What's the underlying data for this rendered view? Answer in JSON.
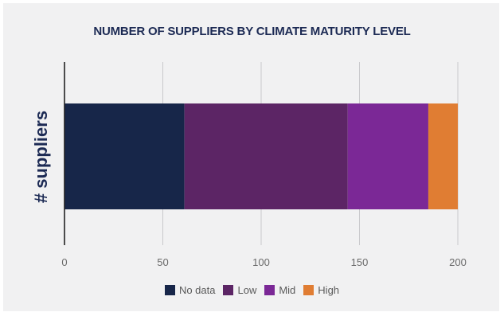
{
  "chart_data": {
    "type": "bar",
    "orientation": "horizontal",
    "stacked": true,
    "title": "NUMBER OF SUPPLIERS BY CLIMATE MATURITY LEVEL",
    "ylabel": "# suppliers",
    "xlabel": "",
    "xlim": [
      0,
      200
    ],
    "xticks": [
      "0",
      "50",
      "100",
      "150",
      "200"
    ],
    "grid": true,
    "legend_position": "bottom",
    "series": [
      {
        "name": "No data",
        "values": [
          61
        ],
        "color": "#172649"
      },
      {
        "name": "Low",
        "values": [
          83
        ],
        "color": "#5c2565"
      },
      {
        "name": "Mid",
        "values": [
          41
        ],
        "color": "#7b2896"
      },
      {
        "name": "High",
        "values": [
          15
        ],
        "color": "#e07d33"
      }
    ]
  }
}
